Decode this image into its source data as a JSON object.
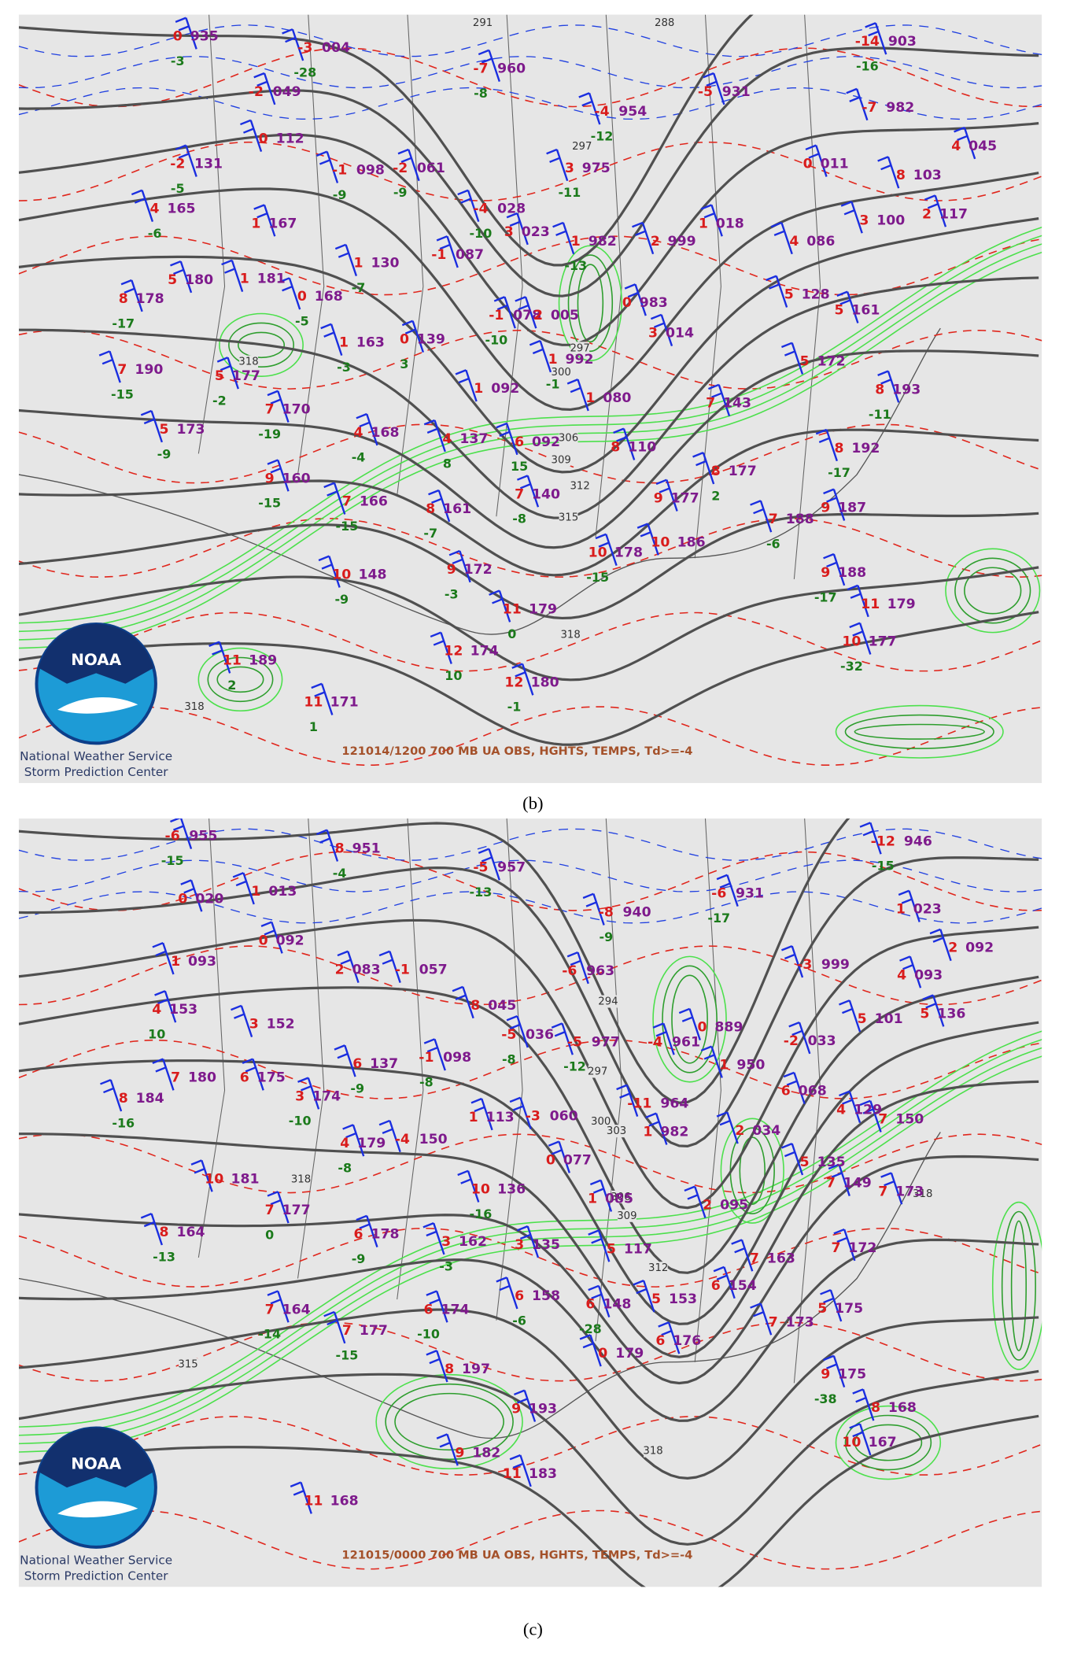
{
  "panels": [
    {
      "caption": "(b)",
      "footer": "121014/1200 700 MB UA OBS, HGHTS, TEMPS, Td>=-4",
      "credit": [
        "National Weather Service",
        "Storm Prediction Center"
      ],
      "logo": "NOAA",
      "contour_labels": [
        "291",
        "288",
        "297",
        "297",
        "300",
        "306",
        "309",
        "312",
        "315",
        "318",
        "318",
        "318"
      ],
      "stations": [
        {
          "t": "0",
          "h": "935",
          "d": "-3"
        },
        {
          "t": "-3",
          "h": "004",
          "d": "-28"
        },
        {
          "t": "-7",
          "h": "960",
          "d": "-8"
        },
        {
          "t": "-4",
          "h": "954",
          "d": "-12"
        },
        {
          "t": "-14",
          "h": "903",
          "d": "-16"
        },
        {
          "t": "-7",
          "h": "982"
        },
        {
          "t": "-2",
          "h": "049"
        },
        {
          "t": "0",
          "h": "112"
        },
        {
          "t": "-2",
          "h": "131",
          "d": "-5"
        },
        {
          "t": "-1",
          "h": "098",
          "d": "-9"
        },
        {
          "t": "-2",
          "h": "061",
          "d": "-9"
        },
        {
          "t": "4",
          "h": "165",
          "d": "-6"
        },
        {
          "t": "1",
          "h": "167"
        },
        {
          "t": "-4",
          "h": "028",
          "d": "-10"
        },
        {
          "t": "3",
          "h": "023"
        },
        {
          "t": "1",
          "h": "982",
          "d": "-13"
        },
        {
          "t": "-1",
          "h": "087"
        },
        {
          "t": "1",
          "h": "130",
          "d": "-7"
        },
        {
          "t": "5",
          "h": "180"
        },
        {
          "t": "1",
          "h": "181"
        },
        {
          "t": "8",
          "h": "178",
          "d": "-17"
        },
        {
          "t": "0",
          "h": "168",
          "d": "-5"
        },
        {
          "t": "-1",
          "h": "078",
          "d": "-10"
        },
        {
          "t": "2",
          "h": "005"
        },
        {
          "t": "0",
          "h": "983"
        },
        {
          "t": "1",
          "h": "163",
          "d": "-3"
        },
        {
          "t": "0",
          "h": "139",
          "d": "3"
        },
        {
          "t": "7",
          "h": "190",
          "d": "-15"
        },
        {
          "t": "5",
          "h": "177",
          "d": "-2"
        },
        {
          "t": "1",
          "h": "092"
        },
        {
          "t": "7",
          "h": "170",
          "d": "-19"
        },
        {
          "t": "5",
          "h": "173",
          "d": "-9"
        },
        {
          "t": "4",
          "h": "168",
          "d": "-4"
        },
        {
          "t": "4",
          "h": "137",
          "d": "8"
        },
        {
          "t": "9",
          "h": "160",
          "d": "-15"
        },
        {
          "t": "7",
          "h": "166",
          "d": "-15"
        },
        {
          "t": "8",
          "h": "161",
          "d": "-7"
        },
        {
          "t": "10",
          "h": "148",
          "d": "-9"
        },
        {
          "t": "9",
          "h": "172",
          "d": "-3"
        },
        {
          "t": "11",
          "h": "189",
          "d": "2"
        },
        {
          "t": "11",
          "h": "171",
          "d": "1"
        },
        {
          "t": "12",
          "h": "174",
          "d": "10"
        },
        {
          "t": "12",
          "h": "180",
          "d": "-1"
        },
        {
          "t": "11",
          "h": "179",
          "d": "0"
        },
        {
          "t": "10",
          "h": "178",
          "d": "-15"
        },
        {
          "t": "10",
          "h": "186"
        },
        {
          "t": "9",
          "h": "177"
        },
        {
          "t": "8",
          "h": "177",
          "d": "2"
        },
        {
          "t": "7",
          "h": "140",
          "d": "-8"
        },
        {
          "t": "6",
          "h": "092",
          "d": "15"
        },
        {
          "t": "8",
          "h": "110"
        },
        {
          "t": "1",
          "h": "080"
        },
        {
          "t": "7",
          "h": "143"
        },
        {
          "t": "1",
          "h": "992",
          "d": "-1"
        },
        {
          "t": "3",
          "h": "014"
        },
        {
          "t": "5",
          "h": "172"
        },
        {
          "t": "8",
          "h": "193",
          "d": "-11"
        },
        {
          "t": "8",
          "h": "192",
          "d": "-17"
        },
        {
          "t": "9",
          "h": "187"
        },
        {
          "t": "7",
          "h": "188",
          "d": "-6"
        },
        {
          "t": "9",
          "h": "188",
          "d": "-17"
        },
        {
          "t": "11",
          "h": "179"
        },
        {
          "t": "10",
          "h": "177",
          "d": "-32"
        },
        {
          "t": "5",
          "h": "128"
        },
        {
          "t": "5",
          "h": "161"
        },
        {
          "t": "4",
          "h": "086"
        },
        {
          "t": "1",
          "h": "018"
        },
        {
          "t": "2",
          "h": "999"
        },
        {
          "t": "0",
          "h": "011"
        },
        {
          "t": "3",
          "h": "100"
        },
        {
          "t": "2",
          "h": "117"
        },
        {
          "t": "8",
          "h": "103"
        },
        {
          "t": "4",
          "h": "045"
        },
        {
          "t": "3",
          "h": "975",
          "d": "-11"
        },
        {
          "t": "-5",
          "h": "931"
        }
      ]
    },
    {
      "caption": "(c)",
      "footer": "121015/0000 700 MB UA OBS, HGHTS, TEMPS, Td>=-4",
      "credit": [
        "National Weather Service",
        "Storm Prediction Center"
      ],
      "logo": "NOAA",
      "contour_labels": [
        "294",
        "297",
        "300",
        "303",
        "306",
        "309",
        "312",
        "318",
        "318",
        "315",
        "318"
      ],
      "stations": [
        {
          "t": "-6",
          "h": "955",
          "d": "-15"
        },
        {
          "t": "8",
          "h": "951",
          "d": "-4"
        },
        {
          "t": "-5",
          "h": "957",
          "d": "-13"
        },
        {
          "t": "-8",
          "h": "940",
          "d": "-9"
        },
        {
          "t": "-6",
          "h": "931",
          "d": "-17"
        },
        {
          "t": "-12",
          "h": "946",
          "d": "-15"
        },
        {
          "t": "0",
          "h": "020"
        },
        {
          "t": "1",
          "h": "013"
        },
        {
          "t": "0",
          "h": "092"
        },
        {
          "t": "1",
          "h": "093"
        },
        {
          "t": "2",
          "h": "083"
        },
        {
          "t": "-1",
          "h": "057"
        },
        {
          "t": "4",
          "h": "153",
          "d": "10"
        },
        {
          "t": "3",
          "h": "152"
        },
        {
          "t": "-6",
          "h": "963"
        },
        {
          "t": "-3",
          "h": "999"
        },
        {
          "t": "1",
          "h": "023"
        },
        {
          "t": "2",
          "h": "092"
        },
        {
          "t": "4",
          "h": "093"
        },
        {
          "t": "8",
          "h": "045"
        },
        {
          "t": "-5",
          "h": "036",
          "d": "-8"
        },
        {
          "t": "-5",
          "h": "977",
          "d": "-12"
        },
        {
          "t": "-4",
          "h": "961"
        },
        {
          "t": "0",
          "h": "889"
        },
        {
          "t": "-2",
          "h": "033"
        },
        {
          "t": "5",
          "h": "101"
        },
        {
          "t": "5",
          "h": "136"
        },
        {
          "t": "6",
          "h": "137",
          "d": "-9"
        },
        {
          "t": "-1",
          "h": "098",
          "d": "-8"
        },
        {
          "t": "7",
          "h": "180"
        },
        {
          "t": "6",
          "h": "175"
        },
        {
          "t": "8",
          "h": "184",
          "d": "-16"
        },
        {
          "t": "3",
          "h": "174",
          "d": "-10"
        },
        {
          "t": "1",
          "h": "950"
        },
        {
          "t": "6",
          "h": "068"
        },
        {
          "t": "-11",
          "h": "964"
        },
        {
          "t": "1",
          "h": "113"
        },
        {
          "t": "-3",
          "h": "060"
        },
        {
          "t": "1",
          "h": "982"
        },
        {
          "t": "2",
          "h": "034"
        },
        {
          "t": "4",
          "h": "129"
        },
        {
          "t": "7",
          "h": "150"
        },
        {
          "t": "4",
          "h": "179",
          "d": "-8"
        },
        {
          "t": "-4",
          "h": "150"
        },
        {
          "t": "0",
          "h": "077"
        },
        {
          "t": "5",
          "h": "135"
        },
        {
          "t": "7",
          "h": "149"
        },
        {
          "t": "10",
          "h": "181"
        },
        {
          "t": "7",
          "h": "177",
          "d": "0"
        },
        {
          "t": "10",
          "h": "136",
          "d": "-16"
        },
        {
          "t": "1",
          "h": "085"
        },
        {
          "t": "2",
          "h": "095"
        },
        {
          "t": "7",
          "h": "173"
        },
        {
          "t": "8",
          "h": "164",
          "d": "-13"
        },
        {
          "t": "6",
          "h": "178",
          "d": "-9"
        },
        {
          "t": "3",
          "h": "162",
          "d": "-3"
        },
        {
          "t": "3",
          "h": "135"
        },
        {
          "t": "5",
          "h": "117"
        },
        {
          "t": "7",
          "h": "172"
        },
        {
          "t": "7",
          "h": "163"
        },
        {
          "t": "7",
          "h": "164",
          "d": "-14"
        },
        {
          "t": "7",
          "h": "177",
          "d": "-15"
        },
        {
          "t": "6",
          "h": "174",
          "d": "-10"
        },
        {
          "t": "6",
          "h": "158",
          "d": "-6"
        },
        {
          "t": "6",
          "h": "148",
          "d": "-28"
        },
        {
          "t": "5",
          "h": "153"
        },
        {
          "t": "6",
          "h": "154"
        },
        {
          "t": "7",
          "h": "173"
        },
        {
          "t": "5",
          "h": "175"
        },
        {
          "t": "0",
          "h": "179"
        },
        {
          "t": "6",
          "h": "176"
        },
        {
          "t": "8",
          "h": "197"
        },
        {
          "t": "9",
          "h": "193"
        },
        {
          "t": "9",
          "h": "182"
        },
        {
          "t": "11",
          "h": "183"
        },
        {
          "t": "11",
          "h": "168"
        },
        {
          "t": "9",
          "h": "175",
          "d": "-38"
        },
        {
          "t": "8",
          "h": "168"
        },
        {
          "t": "10",
          "h": "167"
        }
      ]
    }
  ]
}
